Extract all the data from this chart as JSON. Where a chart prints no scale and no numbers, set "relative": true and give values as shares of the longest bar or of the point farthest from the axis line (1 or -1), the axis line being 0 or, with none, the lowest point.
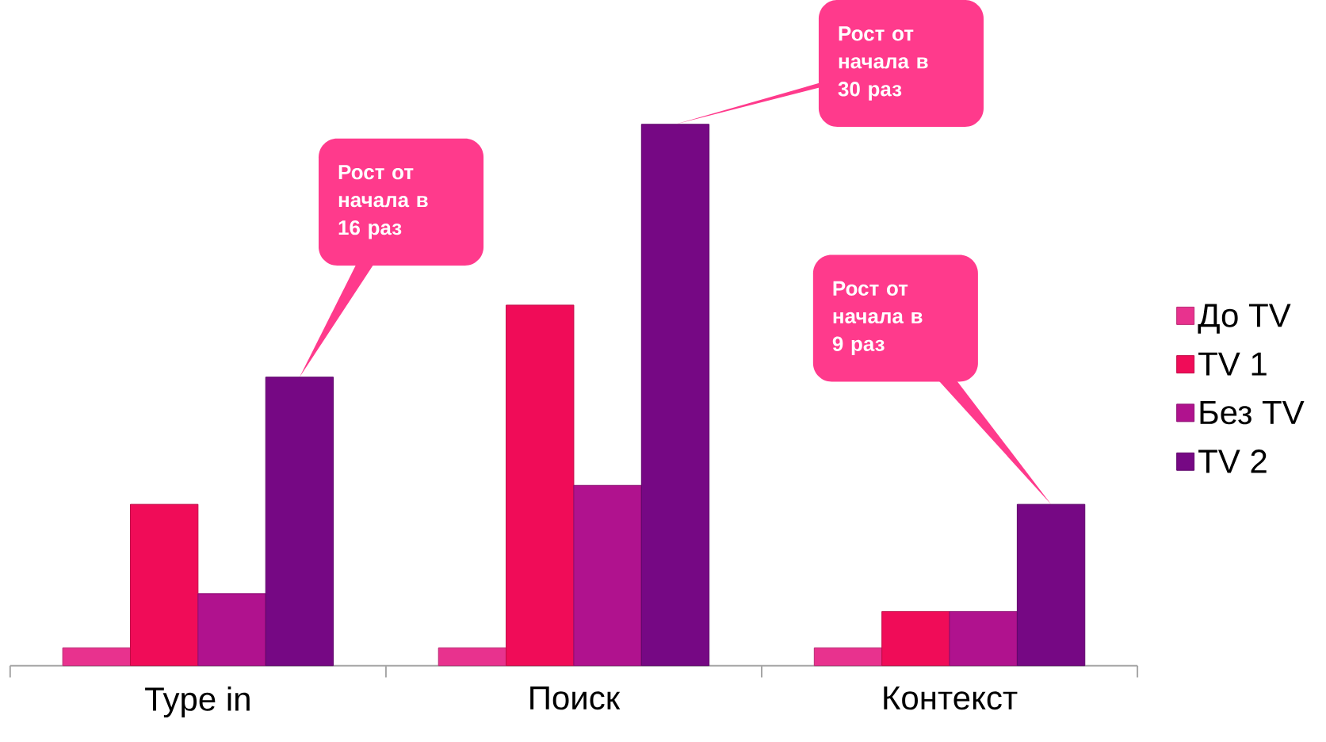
{
  "chart_data": {
    "type": "bar",
    "relative": true,
    "categories": [
      "Type in",
      "Поиск",
      "Контекст"
    ],
    "series": [
      {
        "name": "До TV",
        "color": "#e8328e",
        "values": [
          0.033,
          0.033,
          0.033
        ]
      },
      {
        "name": "TV 1",
        "color": "#f00c58",
        "values": [
          0.298,
          0.666,
          0.1
        ]
      },
      {
        "name": "Без TV",
        "color": "#b0128e",
        "values": [
          0.133,
          0.333,
          0.1
        ]
      },
      {
        "name": "TV 2",
        "color": "#760884",
        "values": [
          0.533,
          1,
          0.298
        ]
      }
    ],
    "legend": "right",
    "annotations": [
      "Рост от начала в 16 раз",
      "Рост от начала в 30 раз",
      "Рост от начала в 9 раз"
    ]
  }
}
